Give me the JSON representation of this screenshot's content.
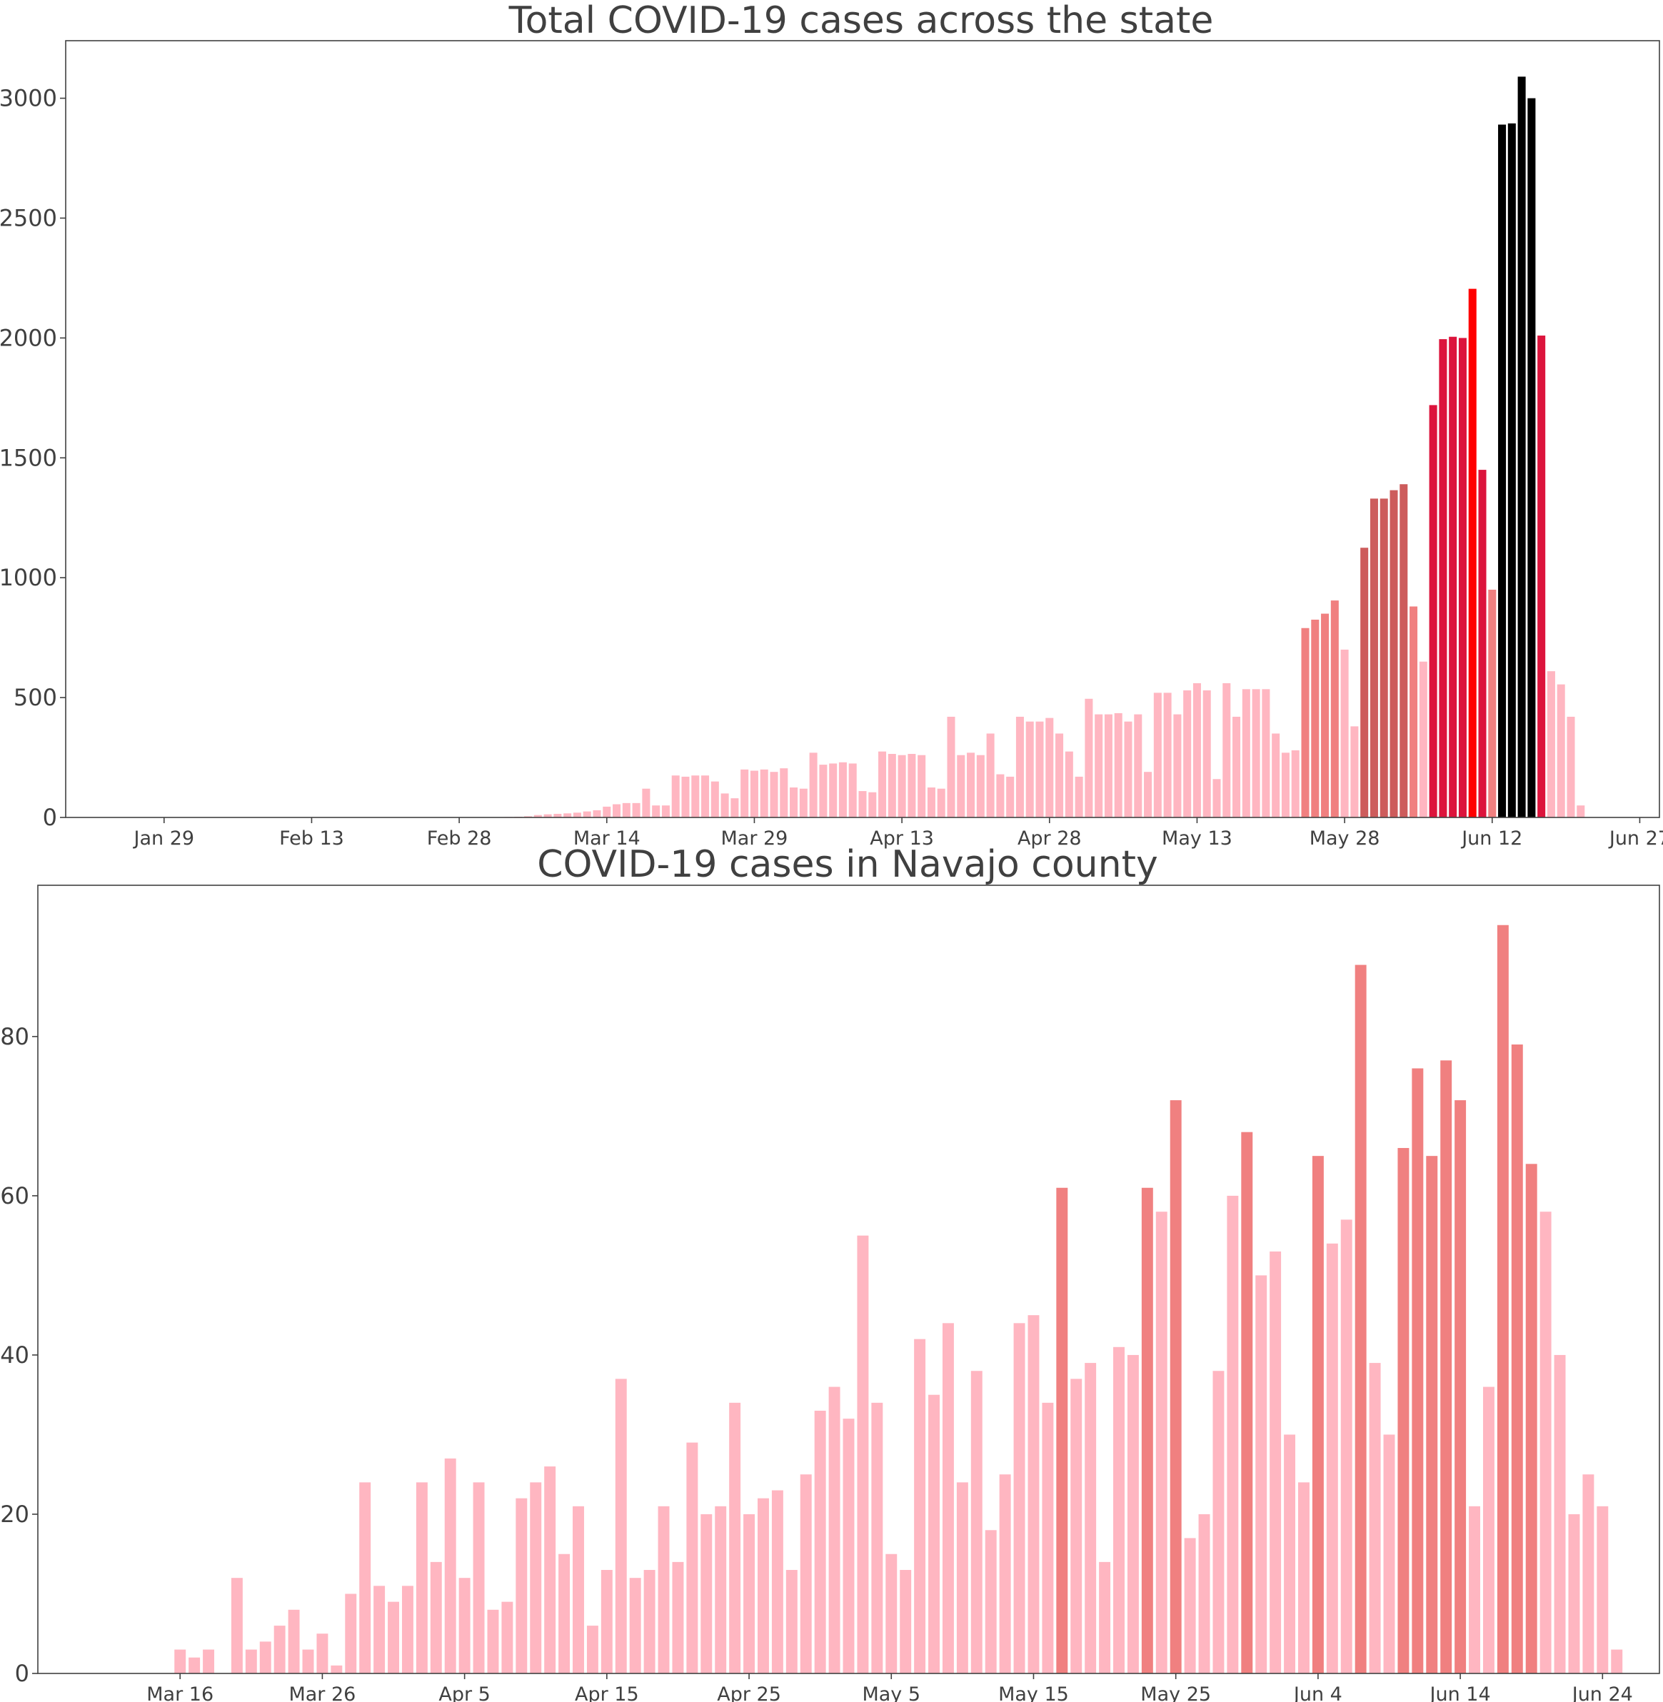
{
  "chart_data": [
    {
      "type": "bar",
      "title": "Total COVID-19 cases across the state",
      "xlabel": "",
      "ylabel": "",
      "x_start": "2020-01-26",
      "x_end": "2020-06-22",
      "xlim": [
        "2020-01-19",
        "2020-06-29"
      ],
      "ylim": [
        0,
        3240
      ],
      "grid": false,
      "yticks": [
        0,
        500,
        1000,
        1500,
        2000,
        2500,
        3000
      ],
      "xticks": [
        {
          "date": "2020-01-29",
          "label": "Jan 29"
        },
        {
          "date": "2020-02-13",
          "label": "Feb 13"
        },
        {
          "date": "2020-02-28",
          "label": "Feb 28"
        },
        {
          "date": "2020-03-14",
          "label": "Mar 14"
        },
        {
          "date": "2020-03-29",
          "label": "Mar 29"
        },
        {
          "date": "2020-04-13",
          "label": "Apr 13"
        },
        {
          "date": "2020-04-28",
          "label": "Apr 28"
        },
        {
          "date": "2020-05-13",
          "label": "May 13"
        },
        {
          "date": "2020-05-28",
          "label": "May 28"
        },
        {
          "date": "2020-06-12",
          "label": "Jun 12"
        },
        {
          "date": "2020-06-27",
          "label": "Jun 27"
        }
      ],
      "color_scale": {
        "thresholds": [
          750,
          1100,
          1400,
          2100,
          2800
        ],
        "colors": [
          "#ffb6c1",
          "#f08080",
          "#cd5c5c",
          "#dc143c",
          "#ff0000"
        ]
      },
      "values": [
        1,
        0,
        1,
        0,
        0,
        0,
        0,
        0,
        0,
        0,
        0,
        0,
        0,
        0,
        0,
        0,
        0,
        0,
        1,
        0,
        0,
        0,
        0,
        0,
        0,
        0,
        0,
        0,
        0,
        0,
        0,
        0,
        0,
        0,
        0,
        0,
        0,
        1,
        2,
        3,
        5,
        10,
        13,
        15,
        17,
        20,
        25,
        30,
        45,
        55,
        60,
        60,
        120,
        50,
        50,
        175,
        170,
        175,
        175,
        150,
        100,
        80,
        200,
        195,
        200,
        190,
        205,
        125,
        120,
        270,
        220,
        225,
        230,
        225,
        110,
        105,
        275,
        265,
        260,
        265,
        260,
        125,
        120,
        420,
        260,
        270,
        260,
        350,
        180,
        170,
        420,
        400,
        400,
        415,
        350,
        275,
        170,
        495,
        430,
        430,
        435,
        400,
        430,
        190,
        520,
        520,
        430,
        530,
        560,
        530,
        160,
        560,
        420,
        535,
        535,
        535,
        350,
        270,
        280,
        790,
        825,
        850,
        905,
        700,
        380,
        1125,
        1330,
        1330,
        1365,
        1390,
        880,
        650,
        1720,
        1995,
        2005,
        2000,
        2205,
        1450,
        950,
        2890,
        2895,
        3090,
        3000,
        2010,
        610,
        555,
        420,
        50
      ]
    },
    {
      "type": "bar",
      "title": "COVID-19 cases in Navajo county",
      "xlabel": "",
      "ylabel": "",
      "x_start": "2020-03-13",
      "x_end": "2020-06-24",
      "xlim": [
        "2020-03-06",
        "2020-06-28"
      ],
      "ylim": [
        0,
        99
      ],
      "grid": false,
      "yticks": [
        0,
        20,
        40,
        60,
        80
      ],
      "xticks": [
        {
          "date": "2020-03-16",
          "label": "Mar 16"
        },
        {
          "date": "2020-03-26",
          "label": "Mar 26"
        },
        {
          "date": "2020-04-05",
          "label": "Apr 5"
        },
        {
          "date": "2020-04-15",
          "label": "Apr 15"
        },
        {
          "date": "2020-04-25",
          "label": "Apr 25"
        },
        {
          "date": "2020-05-05",
          "label": "May 5"
        },
        {
          "date": "2020-05-15",
          "label": "May 15"
        },
        {
          "date": "2020-05-25",
          "label": "May 25"
        },
        {
          "date": "2020-06-04",
          "label": "Jun 4"
        },
        {
          "date": "2020-06-14",
          "label": "Jun 14"
        },
        {
          "date": "2020-06-24",
          "label": "Jun 24"
        }
      ],
      "color_scale": {
        "thresholds": [
          61
        ],
        "colors": [
          "#ffb6c1",
          "#f08080"
        ]
      },
      "values": [
        0,
        0,
        0,
        3,
        2,
        3,
        0,
        12,
        3,
        4,
        6,
        8,
        3,
        5,
        1,
        10,
        24,
        11,
        9,
        11,
        24,
        14,
        27,
        12,
        24,
        8,
        9,
        22,
        24,
        26,
        15,
        21,
        6,
        13,
        37,
        12,
        13,
        21,
        14,
        29,
        20,
        21,
        34,
        20,
        22,
        23,
        13,
        25,
        33,
        36,
        32,
        55,
        34,
        15,
        13,
        42,
        35,
        44,
        24,
        38,
        18,
        25,
        44,
        45,
        34,
        61,
        37,
        39,
        14,
        41,
        40,
        61,
        58,
        72,
        17,
        20,
        38,
        60,
        68,
        50,
        53,
        30,
        24,
        65,
        54,
        57,
        89,
        39,
        30,
        66,
        76,
        65,
        77,
        72,
        21,
        36,
        94,
        79,
        64,
        58,
        40,
        20,
        25,
        21,
        3
      ]
    }
  ]
}
